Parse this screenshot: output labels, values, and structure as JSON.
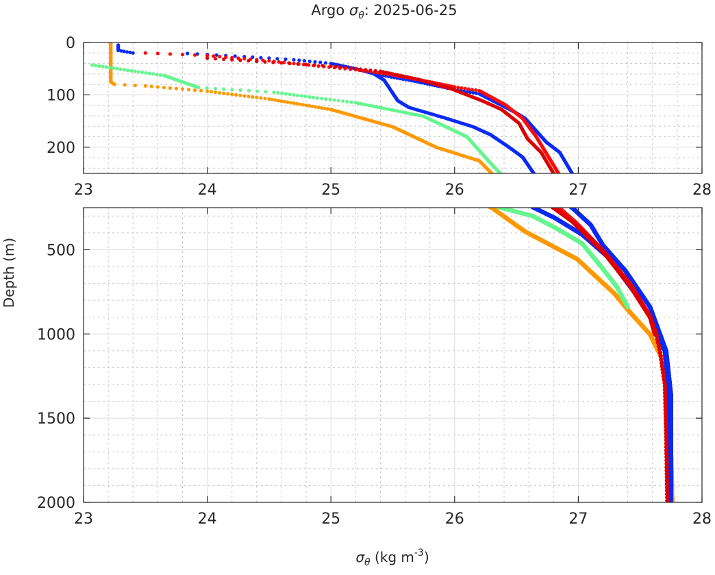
{
  "chart_data": {
    "type": "scatter",
    "title_prefix": "Argo ",
    "title_symbol": "σ",
    "title_sub": "θ",
    "title_suffix": ": 2025-06-25",
    "xlabel_symbol": "σ",
    "xlabel_sub": "θ",
    "xlabel_units": " (kg m",
    "xlabel_exp": "-3",
    "xlabel_close": ")",
    "ylabel": "Depth (m)",
    "xlim": [
      23,
      28
    ],
    "x_ticks": [
      "23",
      "24",
      "25",
      "26",
      "27",
      "28"
    ],
    "panels": [
      {
        "name": "upper",
        "ylim": [
          0,
          250
        ],
        "y_ticks": [
          0,
          100,
          200
        ],
        "y_tick_labels": [
          "0",
          "100",
          "200"
        ],
        "minor_y_step": 20,
        "step_m": 1
      },
      {
        "name": "lower",
        "ylim": [
          250,
          2000
        ],
        "y_ticks": [
          500,
          1000,
          1500,
          2000
        ],
        "y_tick_labels": [
          "500",
          "1000",
          "1500",
          "2000"
        ],
        "minor_y_step": 100,
        "step_m": 1
      }
    ],
    "grid": true,
    "series": [
      {
        "name": "profile-orange",
        "color": "#ff9900",
        "points": [
          [
            23.22,
            0
          ],
          [
            23.22,
            75
          ],
          [
            23.25,
            80
          ],
          [
            23.5,
            83
          ],
          [
            24.0,
            93
          ],
          [
            24.5,
            108
          ],
          [
            25.0,
            128
          ],
          [
            25.5,
            161
          ],
          [
            25.85,
            200
          ],
          [
            26.2,
            226
          ],
          [
            26.3,
            250
          ],
          [
            26.57,
            392
          ],
          [
            26.99,
            555
          ],
          [
            27.29,
            759
          ],
          [
            27.4,
            856
          ],
          [
            27.58,
            1003
          ],
          [
            27.69,
            1166
          ],
          [
            27.74,
            1438
          ],
          [
            27.76,
            2000
          ]
        ]
      },
      {
        "name": "profile-green",
        "color": "#66f58f",
        "points": [
          [
            23.07,
            43
          ],
          [
            23.27,
            50
          ],
          [
            23.65,
            63
          ],
          [
            23.93,
            86
          ],
          [
            24.54,
            95
          ],
          [
            24.89,
            106
          ],
          [
            25.2,
            115
          ],
          [
            25.75,
            141
          ],
          [
            26.1,
            180
          ],
          [
            26.3,
            233
          ],
          [
            26.37,
            250
          ],
          [
            26.63,
            299
          ],
          [
            26.81,
            368
          ],
          [
            27.03,
            462
          ],
          [
            27.18,
            596
          ],
          [
            27.31,
            718
          ],
          [
            27.4,
            840
          ]
        ]
      },
      {
        "name": "profile-blue-1",
        "color": "#0a2bf5",
        "points": [
          [
            23.28,
            5
          ],
          [
            23.28,
            15
          ],
          [
            23.4,
            20
          ],
          [
            23.6,
            18
          ],
          [
            24.0,
            23
          ],
          [
            24.3,
            27
          ],
          [
            24.7,
            33
          ],
          [
            25.0,
            40
          ],
          [
            25.2,
            50
          ],
          [
            25.35,
            60
          ],
          [
            25.43,
            72
          ],
          [
            25.54,
            111
          ],
          [
            25.63,
            124
          ],
          [
            25.92,
            144
          ],
          [
            26.15,
            161
          ],
          [
            26.29,
            176
          ],
          [
            26.44,
            200
          ],
          [
            26.55,
            219
          ],
          [
            26.64,
            250
          ],
          [
            26.81,
            311
          ],
          [
            27.03,
            409
          ],
          [
            27.24,
            543
          ],
          [
            27.46,
            759
          ],
          [
            27.6,
            921
          ],
          [
            27.7,
            1101
          ],
          [
            27.73,
            1304
          ],
          [
            27.74,
            2000
          ]
        ]
      },
      {
        "name": "profile-blue-2",
        "color": "#0a2bf5",
        "points": [
          [
            25.35,
            60
          ],
          [
            25.7,
            75
          ],
          [
            26.0,
            90
          ],
          [
            26.2,
            98
          ],
          [
            26.48,
            132
          ],
          [
            26.57,
            145
          ],
          [
            26.74,
            190
          ],
          [
            26.85,
            210
          ],
          [
            26.95,
            250
          ],
          [
            27.1,
            352
          ],
          [
            27.2,
            474
          ],
          [
            27.38,
            624
          ],
          [
            27.58,
            840
          ],
          [
            27.71,
            1101
          ],
          [
            27.75,
            1369
          ],
          [
            27.75,
            2000
          ]
        ]
      },
      {
        "name": "profile-red-1",
        "color": "#ff0a0a",
        "points": [
          [
            23.0,
            20
          ],
          [
            23.2,
            18
          ],
          [
            23.5,
            20
          ],
          [
            24.0,
            25
          ],
          [
            24.5,
            35
          ],
          [
            24.9,
            45
          ],
          [
            25.2,
            52
          ],
          [
            25.5,
            62
          ],
          [
            25.8,
            75
          ],
          [
            26.0,
            85
          ],
          [
            26.2,
            92
          ],
          [
            26.41,
            119
          ],
          [
            26.55,
            145
          ],
          [
            26.66,
            180
          ],
          [
            26.75,
            215
          ],
          [
            26.84,
            250
          ],
          [
            26.98,
            340
          ],
          [
            27.21,
            515
          ],
          [
            27.42,
            706
          ],
          [
            27.58,
            897
          ],
          [
            27.62,
            1003
          ]
        ]
      },
      {
        "name": "profile-red-2",
        "color": "#dd0000",
        "deep_step_m": 20,
        "points": [
          [
            24.0,
            30
          ],
          [
            25.0,
            45
          ],
          [
            25.4,
            55
          ],
          [
            25.7,
            70
          ],
          [
            25.98,
            89
          ],
          [
            26.22,
            111
          ],
          [
            26.38,
            128
          ],
          [
            26.52,
            154
          ],
          [
            26.59,
            184
          ],
          [
            26.7,
            210
          ],
          [
            26.8,
            250
          ],
          [
            26.95,
            330
          ],
          [
            27.2,
            510
          ],
          [
            27.42,
            715
          ],
          [
            27.58,
            900
          ],
          [
            27.63,
            1003
          ],
          [
            27.66,
            1101
          ],
          [
            27.7,
            1304
          ],
          [
            27.71,
            1573
          ],
          [
            27.72,
            2000
          ]
        ]
      }
    ]
  }
}
